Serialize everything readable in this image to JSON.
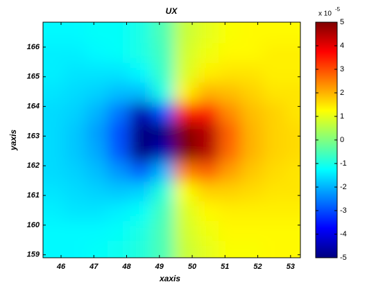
{
  "chart_data": {
    "type": "heatmap",
    "title": "UX",
    "xlabel": "xaxis",
    "ylabel": "yaxis",
    "colormap": "jet",
    "x": [
      45.74,
      46.41,
      47.09,
      47.76,
      48.44,
      49.11,
      49.79,
      50.46,
      51.14,
      51.81,
      52.49,
      53.16
    ],
    "y": [
      166.47,
      165.8,
      165.13,
      164.47,
      163.8,
      163.13,
      162.47,
      161.8,
      161.13,
      160.47,
      159.8,
      159.13
    ],
    "z": [
      [
        -1.3,
        -1.3,
        -1.2,
        -1.2,
        -1.0,
        -0.5,
        0.7,
        1.0,
        1.2,
        1.3,
        1.3,
        1.3
      ],
      [
        -1.4,
        -1.4,
        -1.3,
        -1.2,
        -1.0,
        -0.6,
        0.8,
        1.1,
        1.3,
        1.3,
        1.4,
        1.4
      ],
      [
        -1.4,
        -1.5,
        -1.5,
        -1.5,
        -1.3,
        -0.7,
        0.9,
        1.4,
        1.5,
        1.5,
        1.4,
        1.4
      ],
      [
        -1.5,
        -1.6,
        -1.7,
        -1.9,
        -1.9,
        -1.0,
        1.4,
        2.0,
        1.9,
        1.7,
        1.5,
        1.5
      ],
      [
        -1.6,
        -1.7,
        -2.0,
        -2.6,
        -4.5,
        -3.0,
        3.5,
        3.5,
        2.4,
        1.9,
        1.7,
        1.5
      ],
      [
        -1.6,
        -1.8,
        -2.2,
        -3.0,
        -5.0,
        -5.0,
        5.0,
        4.5,
        2.8,
        2.0,
        1.7,
        1.6
      ],
      [
        -1.6,
        -1.8,
        -2.1,
        -2.9,
        -5.0,
        -4.5,
        5.0,
        4.5,
        2.7,
        2.0,
        1.7,
        1.6
      ],
      [
        -1.6,
        -1.7,
        -1.9,
        -2.3,
        -2.8,
        -2.0,
        2.5,
        2.8,
        2.2,
        1.8,
        1.6,
        1.5
      ],
      [
        -1.5,
        -1.6,
        -1.7,
        -1.8,
        -1.7,
        -0.9,
        1.2,
        1.7,
        1.7,
        1.6,
        1.5,
        1.5
      ],
      [
        -1.4,
        -1.5,
        -1.5,
        -1.4,
        -1.2,
        -0.6,
        0.9,
        1.3,
        1.4,
        1.4,
        1.4,
        1.4
      ],
      [
        -1.3,
        -1.3,
        -1.3,
        -1.2,
        -1.0,
        -0.5,
        0.8,
        1.1,
        1.3,
        1.3,
        1.3,
        1.3
      ],
      [
        -1.3,
        -1.3,
        -1.2,
        -1.1,
        -0.9,
        -0.5,
        0.7,
        1.0,
        1.2,
        1.2,
        1.3,
        1.3
      ]
    ],
    "xlim": [
      45.45,
      53.3
    ],
    "ylim": [
      158.9,
      166.84
    ],
    "xticks": [
      46,
      47,
      48,
      49,
      50,
      51,
      52,
      53
    ],
    "yticks": [
      159,
      160,
      161,
      162,
      163,
      164,
      165,
      166
    ],
    "clim": [
      -5,
      5
    ],
    "cticks": [
      -5,
      -4,
      -3,
      -2,
      -1,
      0,
      1,
      2,
      3,
      4,
      5
    ],
    "colorbar_multiplier": "x 10",
    "colorbar_exponent": "-5"
  }
}
